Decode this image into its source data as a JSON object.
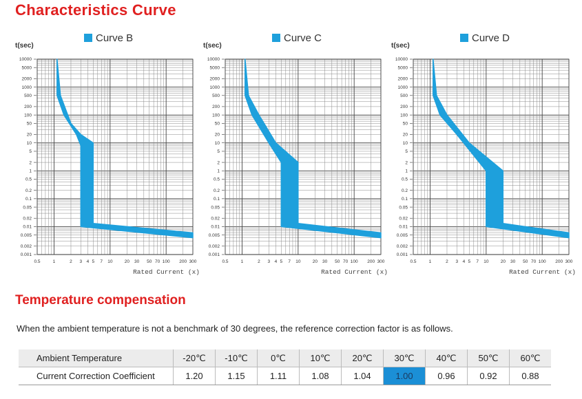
{
  "heading": "Characteristics Curve",
  "curve_axis": {
    "ylabel": "t(sec)",
    "xlabel": "Rated Current (x)",
    "y_ticks": [
      "10000",
      "5000",
      "2000",
      "1000",
      "500",
      "200",
      "100",
      "50",
      "20",
      "10",
      "5",
      "2",
      "1",
      "0.5",
      "0.2",
      "0.1",
      "0.05",
      "0.02",
      "0.01",
      "0.005",
      "0.002",
      "0.001"
    ],
    "x_ticks": [
      "0.5",
      "1",
      "2",
      "3",
      "4",
      "5",
      "7",
      "10",
      "20",
      "30",
      "50",
      "70",
      "100",
      "200",
      "300"
    ]
  },
  "chart_data": [
    {
      "type": "area",
      "title": "Curve B",
      "xlabel": "Rated Current (x)",
      "ylabel": "t(sec)",
      "xscale": "log",
      "yscale": "log",
      "xlim": [
        0.5,
        300
      ],
      "ylim": [
        0.001,
        10000
      ],
      "band_upper": [
        [
          1.13,
          10000
        ],
        [
          1.3,
          500
        ],
        [
          2,
          50
        ],
        [
          3,
          20
        ],
        [
          5,
          10
        ],
        [
          5,
          0.013
        ],
        [
          300,
          0.006
        ]
      ],
      "band_lower": [
        [
          1.13,
          10000
        ],
        [
          1.13,
          500
        ],
        [
          1.5,
          100
        ],
        [
          2.5,
          20
        ],
        [
          3,
          8
        ],
        [
          3,
          0.01
        ],
        [
          300,
          0.004
        ]
      ]
    },
    {
      "type": "area",
      "title": "Curve C",
      "xlabel": "Rated Current (x)",
      "ylabel": "t(sec)",
      "xscale": "log",
      "yscale": "log",
      "xlim": [
        0.5,
        300
      ],
      "ylim": [
        0.001,
        10000
      ],
      "band_upper": [
        [
          1.13,
          10000
        ],
        [
          1.3,
          500
        ],
        [
          2,
          100
        ],
        [
          4,
          10
        ],
        [
          10,
          2
        ],
        [
          10,
          0.013
        ],
        [
          300,
          0.006
        ]
      ],
      "band_lower": [
        [
          1.13,
          10000
        ],
        [
          1.13,
          500
        ],
        [
          1.5,
          100
        ],
        [
          3,
          10
        ],
        [
          5,
          2
        ],
        [
          5,
          0.01
        ],
        [
          300,
          0.004
        ]
      ]
    },
    {
      "type": "area",
      "title": "Curve D",
      "xlabel": "Rated Current (x)",
      "ylabel": "t(sec)",
      "xscale": "log",
      "yscale": "log",
      "xlim": [
        0.5,
        300
      ],
      "ylim": [
        0.001,
        10000
      ],
      "band_upper": [
        [
          1.13,
          10000
        ],
        [
          1.3,
          500
        ],
        [
          2,
          100
        ],
        [
          5,
          10
        ],
        [
          20,
          1
        ],
        [
          20,
          0.013
        ],
        [
          300,
          0.006
        ]
      ],
      "band_lower": [
        [
          1.13,
          10000
        ],
        [
          1.13,
          500
        ],
        [
          1.5,
          100
        ],
        [
          3,
          20
        ],
        [
          10,
          1
        ],
        [
          10,
          0.01
        ],
        [
          300,
          0.004
        ]
      ]
    }
  ],
  "colors": {
    "band": "#1ea0dc",
    "legend": "#1ea0dc",
    "heading": "#e02020",
    "highlight": "#1b8fd6"
  },
  "temp_section": {
    "heading": "Temperature compensation",
    "description": "When the ambient temperature is not a benchmark of 30 degrees, the reference correction factor is as follows.",
    "row1_label": "Ambient Temperature",
    "row2_label": "Current Correction Coefficient",
    "temperatures": [
      "-20℃",
      "-10℃",
      "0℃",
      "10℃",
      "20℃",
      "30℃",
      "40℃",
      "50℃",
      "60℃"
    ],
    "coefficients": [
      "1.20",
      "1.15",
      "1.11",
      "1.08",
      "1.04",
      "1.00",
      "0.96",
      "0.92",
      "0.88"
    ],
    "highlight_index": 5
  }
}
